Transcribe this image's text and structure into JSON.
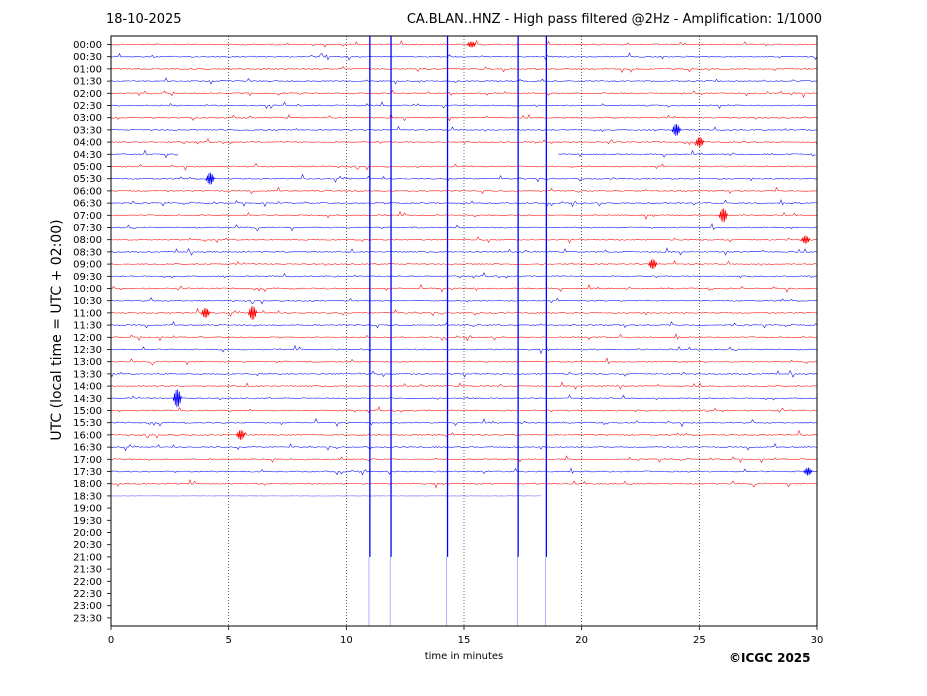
{
  "header": {
    "date": "18-10-2025",
    "title": "CA.BLAN..HNZ - High pass filtered @2Hz - Amplification: 1/1000"
  },
  "footer": {
    "credit": "©ICGC 2025"
  },
  "chart_data": {
    "type": "line",
    "title": "CA.BLAN..HNZ - High pass filtered @2Hz - Amplification: 1/1000",
    "date": "18-10-2025",
    "xlabel": "time in minutes",
    "ylabel": "UTC (local time = UTC + 02:00)",
    "xlim": [
      0,
      30
    ],
    "xticks": [
      0,
      5,
      10,
      15,
      20,
      25,
      30
    ],
    "grid": "vertical dotted lines at 5-minute intervals",
    "rows": [
      "00:00",
      "00:30",
      "01:00",
      "01:30",
      "02:00",
      "02:30",
      "03:00",
      "03:30",
      "04:00",
      "04:30",
      "05:00",
      "05:30",
      "06:00",
      "06:30",
      "07:00",
      "07:30",
      "08:00",
      "08:30",
      "09:00",
      "09:30",
      "10:00",
      "10:30",
      "11:00",
      "11:30",
      "12:00",
      "12:30",
      "13:00",
      "13:30",
      "14:00",
      "14:30",
      "15:00",
      "15:30",
      "16:00",
      "16:30",
      "17:00",
      "17:30",
      "18:00",
      "18:30",
      "19:00",
      "19:30",
      "20:00",
      "20:30",
      "21:00",
      "21:30",
      "22:00",
      "22:30",
      "23:00",
      "23:30"
    ],
    "row_colors": [
      "#ff0000",
      "#0000ff"
    ],
    "last_trace": {
      "row": "18:30",
      "end_minute": 18.3
    },
    "gap": {
      "row": "04:30",
      "from_minute": 2.9,
      "to_minute": 19.0
    },
    "spikes": [
      {
        "minute": 11.0,
        "color": "#0000ff",
        "from_row": "00:00",
        "to_row": "21:00"
      },
      {
        "minute": 11.9,
        "color": "#0000ff",
        "from_row": "00:00",
        "to_row": "21:00"
      },
      {
        "minute": 14.3,
        "color": "#0000ff",
        "from_row": "00:00",
        "to_row": "21:00"
      },
      {
        "minute": 17.3,
        "color": "#0000ff",
        "from_row": "00:00",
        "to_row": "21:00"
      },
      {
        "minute": 18.5,
        "color": "#0000ff",
        "from_row": "00:00",
        "to_row": "21:00"
      }
    ],
    "events": [
      {
        "row": "00:00",
        "minute": 15.3,
        "amp": 3
      },
      {
        "row": "05:30",
        "minute": 4.2,
        "amp": 6
      },
      {
        "row": "07:00",
        "minute": 26.0,
        "amp": 7
      },
      {
        "row": "08:00",
        "minute": 29.5,
        "amp": 4
      },
      {
        "row": "09:00",
        "minute": 23.0,
        "amp": 5
      },
      {
        "row": "11:00",
        "minute": 4.0,
        "amp": 5
      },
      {
        "row": "11:00",
        "minute": 6.0,
        "amp": 7
      },
      {
        "row": "14:30",
        "minute": 2.8,
        "amp": 9
      },
      {
        "row": "16:00",
        "minute": 5.5,
        "amp": 5
      },
      {
        "row": "03:30",
        "minute": 24.0,
        "amp": 6
      },
      {
        "row": "04:00",
        "minute": 25.0,
        "amp": 5
      },
      {
        "row": "17:30",
        "minute": 29.6,
        "amp": 4
      }
    ]
  }
}
